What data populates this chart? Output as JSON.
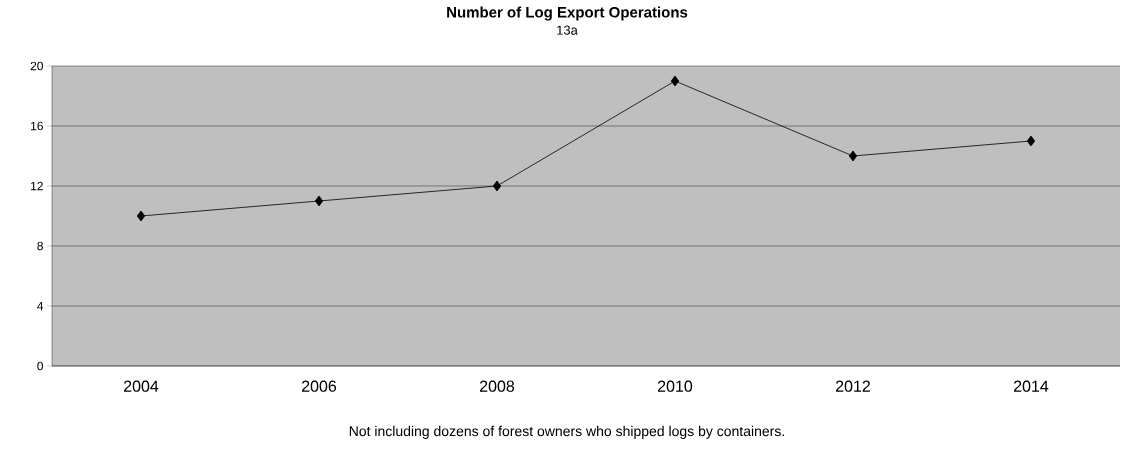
{
  "chart_data": {
    "type": "line",
    "title": "Number of Log Export Operations",
    "subtitle": "13a",
    "categories": [
      "2004",
      "2006",
      "2008",
      "2010",
      "2012",
      "2014"
    ],
    "values": [
      10,
      11,
      12,
      19,
      14,
      15
    ],
    "color": "#000000",
    "ylim": [
      0,
      20
    ],
    "yticks": [
      0,
      4,
      8,
      12,
      16,
      20
    ],
    "grid": "y",
    "marker": "diamond",
    "line_style": "solid",
    "annotations": [
      "Not including dozens of forest owners who shipped logs by containers."
    ]
  }
}
